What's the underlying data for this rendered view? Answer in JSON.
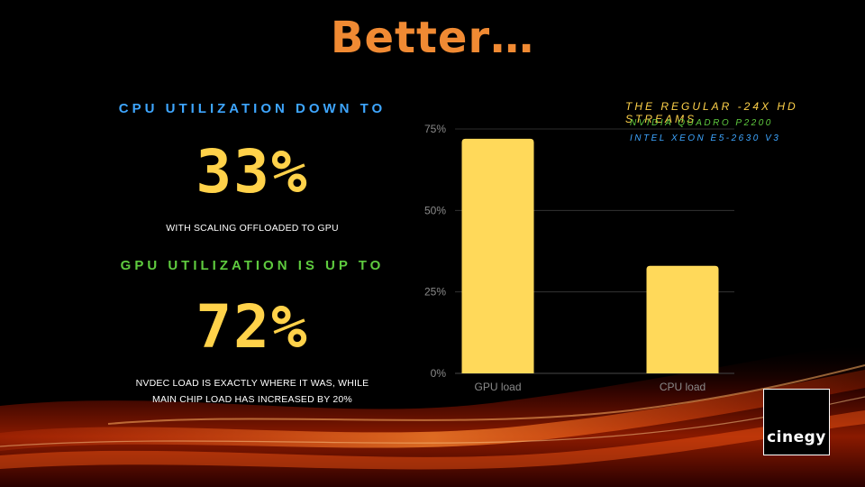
{
  "slide": {
    "title": "Better…",
    "cpu_heading": "CPU UTILIZATION DOWN TO",
    "cpu_value": "33%",
    "cpu_note": "WITH SCALING  OFFLOADED TO GPU",
    "gpu_heading": "GPU UTILIZATION IS UP TO",
    "gpu_value": "72%",
    "gpu_note_line1": "NVDEC LOAD IS EXACTLY WHERE  IT WAS, WHILE",
    "gpu_note_line2": "MAIN CHIP LOAD HAS INCREASED BY 20%",
    "logo_text": "cinegy"
  },
  "legend": {
    "title": "THE REGULAR -24X HD STREAMS",
    "line1": "NVIDIA QUADRO P2200",
    "line2": "INTEL XEON E5-2630 V3"
  },
  "colors": {
    "bar": "#ffd95a",
    "title": "#f08a33",
    "cpu_accent": "#3ea6ff",
    "gpu_accent": "#5fcb3f",
    "gridline": "#3a3a3a"
  },
  "chart_data": {
    "type": "bar",
    "categories": [
      "GPU load",
      "CPU load"
    ],
    "values": [
      72,
      33
    ],
    "ylim": [
      0,
      75
    ],
    "yticks": [
      0,
      25,
      50,
      75
    ],
    "ytick_labels": [
      "0%",
      "25%",
      "50%",
      "75%"
    ],
    "grid": true
  }
}
